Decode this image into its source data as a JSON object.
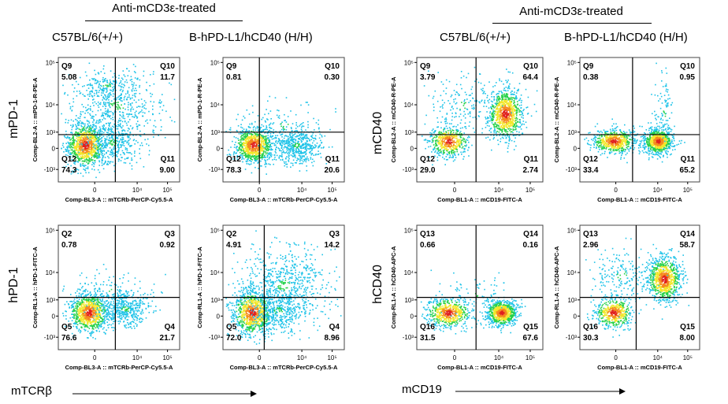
{
  "headers": {
    "left_treatment": "Anti-mCD3ε-treated",
    "right_treatment": "Anti-mCD3ε-treated",
    "left_strain_wt": "C57BL/6(+/+)",
    "left_strain_hh": "B-hPD-L1/hCD40 (H/H)",
    "right_strain_wt": "C57BL/6(+/+)",
    "right_strain_hh": "B-hPD-L1/hCD40 (H/H)"
  },
  "row_labels": {
    "mpd1": "mPD-1",
    "hpd1": "hPD-1",
    "mcd40": "mCD40",
    "hcd40": "hCD40"
  },
  "bottom_labels": {
    "left": "mTCRβ",
    "right": "mCD19"
  },
  "chart_data": [
    {
      "type": "scatter",
      "id": "p1",
      "xlabel": "Comp-BL3-A :: mTCRb-PerCP-Cy5.5-A",
      "ylabel": "Comp-BL2-A :: mPD-1-R-PE-A",
      "xticks": [
        "0",
        "10⁴",
        "10⁵"
      ],
      "yticks": [
        "10⁵",
        "10⁴",
        "10³",
        "0",
        "-10³"
      ],
      "quadrants": [
        {
          "name": "Q9",
          "value": "5.08",
          "pos": "tl"
        },
        {
          "name": "Q10",
          "value": "11.7",
          "pos": "tr"
        },
        {
          "name": "Q12",
          "value": "74.3",
          "pos": "bl"
        },
        {
          "name": "Q11",
          "value": "9.00",
          "pos": "br"
        }
      ],
      "clusters": [
        {
          "cx": 0.22,
          "cy": 0.3,
          "sx": 0.08,
          "sy": 0.09,
          "n": 950,
          "hot": true
        },
        {
          "cx": 0.45,
          "cy": 0.32,
          "sx": 0.11,
          "sy": 0.09,
          "n": 380,
          "hot": false
        },
        {
          "cx": 0.48,
          "cy": 0.62,
          "sx": 0.2,
          "sy": 0.14,
          "n": 520,
          "hot": false
        },
        {
          "cx": 0.4,
          "cy": 0.78,
          "sx": 0.12,
          "sy": 0.06,
          "n": 120,
          "hot": false
        }
      ]
    },
    {
      "type": "scatter",
      "id": "p2",
      "xlabel": "Comp-BL3-A :: mTCRb-PerCP-Cy5.5-A",
      "ylabel": "Comp-BL2-A :: mPD-1-R-PE-A",
      "xticks": [
        "0",
        "10⁴",
        "10⁵"
      ],
      "yticks": [
        "10⁵",
        "10⁴",
        "10³",
        "0",
        "-10³"
      ],
      "quadrants": [
        {
          "name": "Q9",
          "value": "0.81",
          "pos": "tl"
        },
        {
          "name": "Q10",
          "value": "0.30",
          "pos": "tr"
        },
        {
          "name": "Q12",
          "value": "78.3",
          "pos": "bl"
        },
        {
          "name": "Q11",
          "value": "20.6",
          "pos": "br"
        }
      ],
      "clusters": [
        {
          "cx": 0.25,
          "cy": 0.3,
          "sx": 0.08,
          "sy": 0.07,
          "n": 900,
          "hot": true
        },
        {
          "cx": 0.6,
          "cy": 0.3,
          "sx": 0.1,
          "sy": 0.07,
          "n": 500,
          "hot": false
        },
        {
          "cx": 0.5,
          "cy": 0.45,
          "sx": 0.18,
          "sy": 0.1,
          "n": 120,
          "hot": false
        }
      ]
    },
    {
      "type": "scatter",
      "id": "p3",
      "xlabel": "Comp-BL1-A :: mCD19-FITC-A",
      "ylabel": "Comp-BL2-A :: mCD40-R-PE-A",
      "xticks": [
        "0",
        "10⁴",
        "10⁵"
      ],
      "yticks": [
        "10⁵",
        "10⁴",
        "10³",
        "0",
        "-10³"
      ],
      "quadrants": [
        {
          "name": "Q9",
          "value": "3.79",
          "pos": "tl"
        },
        {
          "name": "Q10",
          "value": "64.4",
          "pos": "tr"
        },
        {
          "name": "Q12",
          "value": "29.0",
          "pos": "bl"
        },
        {
          "name": "Q11",
          "value": "2.74",
          "pos": "br"
        }
      ],
      "clusters": [
        {
          "cx": 0.7,
          "cy": 0.55,
          "sx": 0.07,
          "sy": 0.1,
          "n": 900,
          "hot": true
        },
        {
          "cx": 0.25,
          "cy": 0.33,
          "sx": 0.08,
          "sy": 0.06,
          "n": 500,
          "hot": true
        },
        {
          "cx": 0.35,
          "cy": 0.62,
          "sx": 0.14,
          "sy": 0.12,
          "n": 180,
          "hot": false
        }
      ]
    },
    {
      "type": "scatter",
      "id": "p4",
      "xlabel": "Comp-BL1-A :: mCD19-FITC-A",
      "ylabel": "Comp-BL2-A :: mCD40-R-PE-A",
      "xticks": [
        "0",
        "10⁴",
        "10⁵"
      ],
      "yticks": [
        "10⁵",
        "10⁴",
        "10³",
        "0",
        "-10³"
      ],
      "quadrants": [
        {
          "name": "Q9",
          "value": "0.38",
          "pos": "tl"
        },
        {
          "name": "Q10",
          "value": "0.95",
          "pos": "tr"
        },
        {
          "name": "Q12",
          "value": "33.4",
          "pos": "bl"
        },
        {
          "name": "Q11",
          "value": "65.2",
          "pos": "br"
        }
      ],
      "clusters": [
        {
          "cx": 0.28,
          "cy": 0.33,
          "sx": 0.09,
          "sy": 0.05,
          "n": 600,
          "hot": true
        },
        {
          "cx": 0.65,
          "cy": 0.33,
          "sx": 0.06,
          "sy": 0.05,
          "n": 800,
          "hot": true
        },
        {
          "cx": 0.7,
          "cy": 0.55,
          "sx": 0.04,
          "sy": 0.15,
          "n": 90,
          "hot": false
        }
      ]
    },
    {
      "type": "scatter",
      "id": "p5",
      "xlabel": "Comp-BL3-A :: mTCRb-PerCP-Cy5.5-A",
      "ylabel": "Comp-RL1-A :: hPD-1-FITC-A",
      "xticks": [
        "0",
        "10⁴",
        "10⁵"
      ],
      "yticks": [
        "10⁵",
        "10⁴",
        "10³",
        "0",
        "-10³"
      ],
      "quadrants": [
        {
          "name": "Q2",
          "value": "0.78",
          "pos": "tl"
        },
        {
          "name": "Q3",
          "value": "0.92",
          "pos": "tr"
        },
        {
          "name": "Q5",
          "value": "76.6",
          "pos": "bl"
        },
        {
          "name": "Q4",
          "value": "21.7",
          "pos": "br"
        }
      ],
      "clusters": [
        {
          "cx": 0.25,
          "cy": 0.3,
          "sx": 0.08,
          "sy": 0.08,
          "n": 900,
          "hot": true
        },
        {
          "cx": 0.55,
          "cy": 0.33,
          "sx": 0.11,
          "sy": 0.07,
          "n": 450,
          "hot": false
        },
        {
          "cx": 0.4,
          "cy": 0.5,
          "sx": 0.16,
          "sy": 0.1,
          "n": 100,
          "hot": false
        }
      ]
    },
    {
      "type": "scatter",
      "id": "p6",
      "xlabel": "Comp-BL3-A :: mTCRb-PerCP-Cy5.5-A",
      "ylabel": "Comp-RL1-A :: hPD-1-FITC-A",
      "xticks": [
        "0",
        "10⁴",
        "10⁵"
      ],
      "yticks": [
        "10⁵",
        "10⁴",
        "10³",
        "0",
        "-10³"
      ],
      "quadrants": [
        {
          "name": "Q2",
          "value": "4.91",
          "pos": "tl"
        },
        {
          "name": "Q3",
          "value": "14.2",
          "pos": "tr"
        },
        {
          "name": "Q5",
          "value": "72.0",
          "pos": "bl"
        },
        {
          "name": "Q4",
          "value": "8.96",
          "pos": "br"
        }
      ],
      "clusters": [
        {
          "cx": 0.24,
          "cy": 0.3,
          "sx": 0.08,
          "sy": 0.09,
          "n": 900,
          "hot": true
        },
        {
          "cx": 0.5,
          "cy": 0.52,
          "sx": 0.2,
          "sy": 0.15,
          "n": 700,
          "hot": false
        },
        {
          "cx": 0.45,
          "cy": 0.32,
          "sx": 0.12,
          "sy": 0.08,
          "n": 300,
          "hot": false
        }
      ]
    },
    {
      "type": "scatter",
      "id": "p7",
      "xlabel": "Comp-BL1-A :: mCD19-FITC-A",
      "ylabel": "Comp-RL1-A :: hCD40-APC-A",
      "xticks": [
        "0",
        "10⁴",
        "10⁵"
      ],
      "yticks": [
        "10⁵",
        "10⁴",
        "10³",
        "0",
        "-10³"
      ],
      "quadrants": [
        {
          "name": "Q13",
          "value": "0.66",
          "pos": "tl"
        },
        {
          "name": "Q14",
          "value": "0.16",
          "pos": "tr"
        },
        {
          "name": "Q16",
          "value": "31.5",
          "pos": "bl"
        },
        {
          "name": "Q15",
          "value": "67.6",
          "pos": "br"
        }
      ],
      "clusters": [
        {
          "cx": 0.25,
          "cy": 0.3,
          "sx": 0.09,
          "sy": 0.06,
          "n": 600,
          "hot": true
        },
        {
          "cx": 0.67,
          "cy": 0.3,
          "sx": 0.06,
          "sy": 0.05,
          "n": 800,
          "hot": true
        },
        {
          "cx": 0.45,
          "cy": 0.45,
          "sx": 0.15,
          "sy": 0.08,
          "n": 60,
          "hot": false
        }
      ]
    },
    {
      "type": "scatter",
      "id": "p8",
      "xlabel": "Comp-BL1-A :: mCD19-FITC-A",
      "ylabel": "Comp-RL1-A :: hCD40-APC-A",
      "xticks": [
        "0",
        "10⁴",
        "10⁵"
      ],
      "yticks": [
        "10⁵",
        "10⁴",
        "10³",
        "0",
        "-10³"
      ],
      "quadrants": [
        {
          "name": "Q13",
          "value": "2.96",
          "pos": "tl"
        },
        {
          "name": "Q14",
          "value": "58.7",
          "pos": "tr"
        },
        {
          "name": "Q16",
          "value": "30.3",
          "pos": "bl"
        },
        {
          "name": "Q15",
          "value": "8.00",
          "pos": "br"
        }
      ],
      "clusters": [
        {
          "cx": 0.7,
          "cy": 0.57,
          "sx": 0.07,
          "sy": 0.09,
          "n": 900,
          "hot": true
        },
        {
          "cx": 0.28,
          "cy": 0.3,
          "sx": 0.08,
          "sy": 0.06,
          "n": 500,
          "hot": true
        },
        {
          "cx": 0.35,
          "cy": 0.6,
          "sx": 0.15,
          "sy": 0.12,
          "n": 200,
          "hot": false
        }
      ]
    }
  ]
}
